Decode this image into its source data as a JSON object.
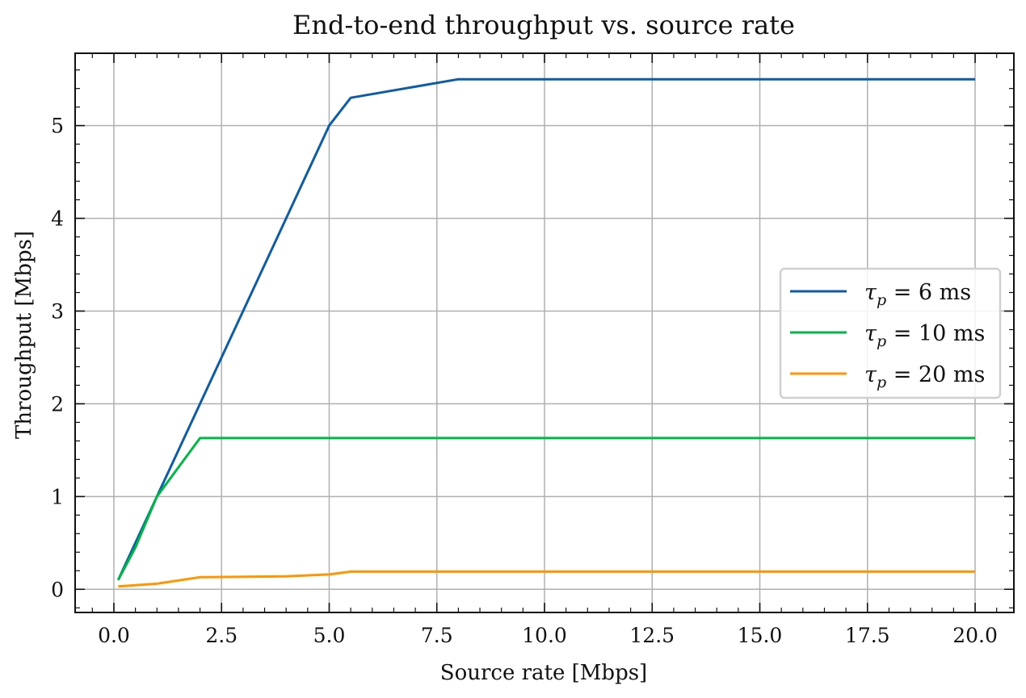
{
  "chart_data": {
    "type": "line",
    "title": "End-to-end throughput vs. source rate",
    "xlabel": "Source rate [Mbps]",
    "ylabel": "Throughput [Mbps]",
    "xlim": [
      -0.9,
      20.9
    ],
    "ylim": [
      -0.25,
      5.78
    ],
    "x_ticks": [
      0.0,
      2.5,
      5.0,
      7.5,
      10.0,
      12.5,
      15.0,
      17.5,
      20.0
    ],
    "x_tick_labels": [
      "0.0",
      "2.5",
      "5.0",
      "7.5",
      "10.0",
      "12.5",
      "15.0",
      "17.5",
      "20.0"
    ],
    "y_ticks": [
      0,
      1,
      2,
      3,
      4,
      5
    ],
    "y_tick_labels": [
      "0",
      "1",
      "2",
      "3",
      "4",
      "5"
    ],
    "grid": true,
    "legend_position": "center-right",
    "series": [
      {
        "name": "τp = 6 ms",
        "legend": {
          "symbol": "τ",
          "sub": "p",
          "rest": " = 6 ms"
        },
        "color": "#0C5DA5",
        "x": [
          0.1,
          0.5,
          1.0,
          2.0,
          3.0,
          4.0,
          5.0,
          5.5,
          8.0,
          20.0
        ],
        "y": [
          0.1,
          0.5,
          1.0,
          2.0,
          3.0,
          4.0,
          5.0,
          5.3,
          5.5,
          5.5
        ]
      },
      {
        "name": "τp = 10 ms",
        "legend": {
          "symbol": "τ",
          "sub": "p",
          "rest": " = 10 ms"
        },
        "color": "#00B945",
        "x": [
          0.1,
          0.5,
          1.0,
          2.0,
          5.0,
          8.0,
          20.0
        ],
        "y": [
          0.1,
          0.45,
          1.0,
          1.63,
          1.63,
          1.63,
          1.63
        ]
      },
      {
        "name": "τp = 20 ms",
        "legend": {
          "symbol": "τ",
          "sub": "p",
          "rest": " = 20 ms"
        },
        "color": "#FF9500",
        "x": [
          0.1,
          1.0,
          2.0,
          4.0,
          5.0,
          5.5,
          8.0,
          20.0
        ],
        "y": [
          0.03,
          0.06,
          0.13,
          0.14,
          0.16,
          0.19,
          0.19,
          0.19
        ]
      }
    ]
  }
}
